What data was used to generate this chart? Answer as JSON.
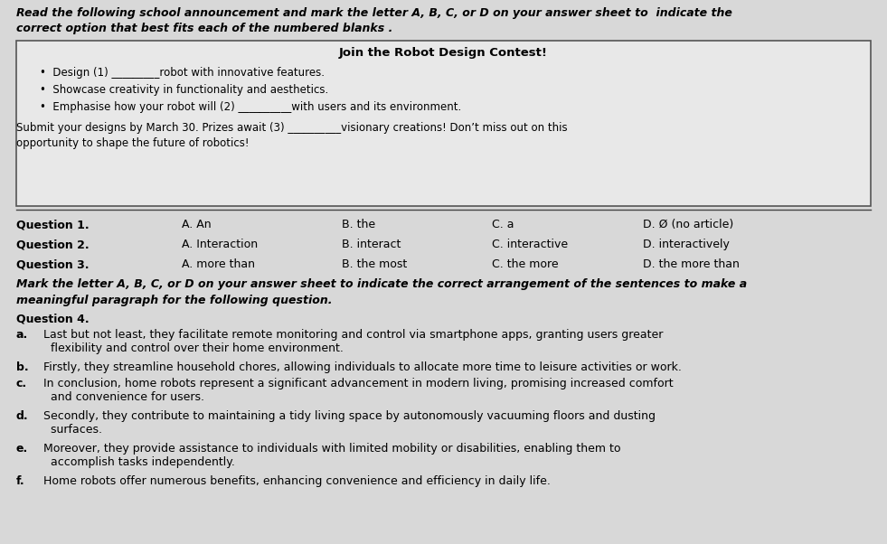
{
  "bg_color": "#d8d8d8",
  "box_bg": "#e8e8e8",
  "title": "Join the Robot Design Contest!",
  "header_line1": "Read the following school announcement and mark the letter A, B, C, or D on your answer sheet to  indicate the",
  "header_line2": "correct option that best fits each of the numbered blanks .",
  "bullet1": "Design (1) _________robot with innovative features.",
  "bullet2": "Showcase creativity in functionality and aesthetics.",
  "bullet3": "Emphasise how your robot will (2) __________with users and its environment.",
  "submit_line1": "Submit your designs by March 30. Prizes await (3) __________visionary creations! Don’t miss out on this",
  "submit_line2": "opportunity to shape the future of robotics!",
  "q1_label": "Question 1. ",
  "q1_A": "A. An",
  "q1_B": "B. the",
  "q1_C": "C. a",
  "q1_D": "D. Ø (no article)",
  "q2_label": "Question 2. ",
  "q2_A": "A. Interaction",
  "q2_B": "B. interact",
  "q2_C": "C. interactive",
  "q2_D": "D. interactively",
  "q3_label": "Question 3. ",
  "q3_A": "A. more than",
  "q3_B": "B. the most",
  "q3_C": "C. the more",
  "q3_D": "D. the more than",
  "mark_line1": "Mark the letter A, B, C, or D on your answer sheet to indicate the correct arrangement of the sentences to make a",
  "mark_line2": "meaningful paragraph for the following question.",
  "q4_label": "Question 4.",
  "q4_a_bold": "a.",
  "q4_a_text": " Last but not least, they facilitate remote monitoring and control via smartphone apps, granting users greater\n   flexibility and control over their home environment.",
  "q4_b_bold": "b.",
  "q4_b_text": " Firstly, they streamline household chores, allowing individuals to allocate more time to leisure activities or work.",
  "q4_c_bold": "c.",
  "q4_c_text": " In conclusion, home robots represent a significant advancement in modern living, promising increased comfort\n   and convenience for users.",
  "q4_d_bold": "d.",
  "q4_d_text": " Secondly, they contribute to maintaining a tidy living space by autonomously vacuuming floors and dusting\n   surfaces.",
  "q4_e_bold": "e.",
  "q4_e_text": " Moreover, they provide assistance to individuals with limited mobility or disabilities, enabling them to\n   accomplish tasks independently.",
  "q4_f_bold": "f.",
  "q4_f_text": " Home robots offer numerous benefits, enhancing convenience and efficiency in daily life.",
  "col0": 0.018,
  "col1": 0.205,
  "col2": 0.385,
  "col3": 0.555,
  "col4": 0.725
}
